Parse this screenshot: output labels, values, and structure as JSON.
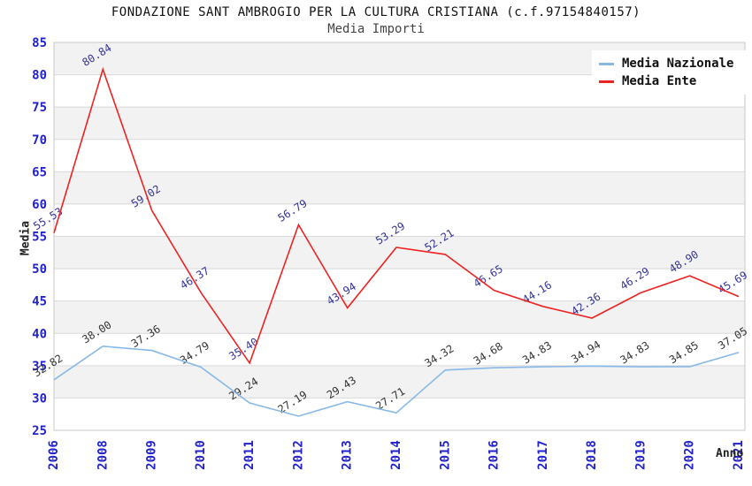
{
  "chart_data": {
    "type": "line",
    "title": "FONDAZIONE SANT AMBROGIO PER LA CULTURA CRISTIANA (c.f.97154840157)",
    "subtitle": "Media Importi",
    "xlabel": "Anno",
    "ylabel": "Media",
    "ylim": [
      25,
      85
    ],
    "ytick_step": 5,
    "ytick_labels": [
      "25",
      "30",
      "35",
      "40",
      "45",
      "50",
      "55",
      "60",
      "65",
      "70",
      "75",
      "80",
      "85"
    ],
    "grid": true,
    "legend_position": "top-right",
    "categories": [
      "2006",
      "2008",
      "2009",
      "2010",
      "2011",
      "2012",
      "2013",
      "2014",
      "2015",
      "2016",
      "2017",
      "2018",
      "2019",
      "2020",
      "2021"
    ],
    "series": [
      {
        "name": "Media Nazionale",
        "color": "#88b8e8",
        "label_color": "#333333",
        "values": [
          32.82,
          38.0,
          37.36,
          34.79,
          29.24,
          27.19,
          29.43,
          27.71,
          34.32,
          34.68,
          34.83,
          34.94,
          34.83,
          34.85,
          37.05
        ],
        "point_labels": [
          "32.82",
          "38.00",
          "37.36",
          "34.79",
          "29.24",
          "27.19",
          "29.43",
          "27.71",
          "34.32",
          "34.68",
          "34.83",
          "34.94",
          "34.83",
          "34.85",
          "37.05"
        ]
      },
      {
        "name": "Media Ente",
        "color": "#ee2222",
        "label_color": "#333399",
        "values": [
          55.53,
          80.84,
          59.02,
          46.37,
          35.4,
          56.79,
          43.94,
          53.29,
          52.21,
          46.65,
          44.16,
          42.36,
          46.29,
          48.9,
          45.69
        ],
        "point_labels": [
          "55.53",
          "80.84",
          "59.02",
          "46.37",
          "35.40",
          "56.79",
          "43.94",
          "53.29",
          "52.21",
          "46.65",
          "44.16",
          "42.36",
          "46.29",
          "48.90",
          "45.69"
        ]
      }
    ],
    "colors": {
      "band": "#f2f2f2",
      "grid": "#d9d9d9",
      "border": "#c9c9c9",
      "tick": "#2222cc",
      "title": "#111111",
      "subtitle": "#444444"
    }
  }
}
